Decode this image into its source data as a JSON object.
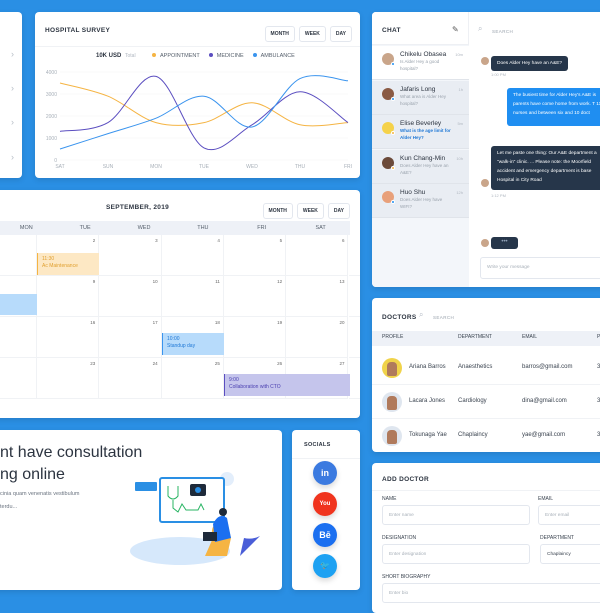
{
  "survey": {
    "title": "HOSPITAL SURVEY",
    "buttons": [
      "MONTH",
      "WEEK",
      "DAY"
    ],
    "total_value": "10K USD",
    "total_label": "Total"
  },
  "chart_data": {
    "type": "line",
    "title": "",
    "x": [
      "SAT",
      "SUN",
      "MON",
      "TUE",
      "WED",
      "THU",
      "FRI"
    ],
    "ylim": [
      0,
      4000
    ],
    "yticks": [
      0,
      1000,
      2000,
      3000,
      4000
    ],
    "grid": true,
    "legend": "top-center",
    "series": [
      {
        "name": "APPOINTMENT",
        "color": "#f5b443",
        "values": [
          3500,
          2900,
          1700,
          1700,
          2600,
          1600,
          1700
        ]
      },
      {
        "name": "MEDICINE",
        "color": "#5b4ec0",
        "values": [
          1300,
          1700,
          3800,
          550,
          1600,
          3100,
          1700
        ]
      },
      {
        "name": "AMBULANCE",
        "color": "#3a94ee",
        "values": [
          500,
          1200,
          1900,
          2900,
          1500,
          3700,
          3600
        ]
      }
    ]
  },
  "calendar": {
    "title": "SEPTEMBER, 2019",
    "buttons": [
      "MONTH",
      "WEEK",
      "DAY"
    ],
    "weekdays": [
      "MON",
      "TUE",
      "WED",
      "THU",
      "FRI",
      "SAT"
    ],
    "weeks": [
      [
        "2",
        "3",
        "4",
        "5",
        "6",
        "7"
      ],
      [
        "9",
        "10",
        "11",
        "12",
        "13",
        "14"
      ],
      [
        "16",
        "17",
        "18",
        "19",
        "20",
        "21"
      ],
      [
        "23",
        "24",
        "25",
        "26",
        "27",
        "28"
      ]
    ],
    "events": [
      {
        "time": "11:30",
        "title": "Ac Maintenance",
        "color": "#f5b443"
      },
      {
        "time": "10:00",
        "title": "Standup day",
        "color": "#3a94ee"
      },
      {
        "time": "9:00",
        "title": "Collaboration with CTO",
        "color": "#5b4ec0"
      }
    ]
  },
  "consult": {
    "heading1": "nt have consultation",
    "heading2": "ng online",
    "text1": "cinia quam venenatis vestibulum",
    "text2": "terdu..."
  },
  "socials": {
    "title": "SOCIALS",
    "items": [
      {
        "name": "linkedin",
        "glyph": "in",
        "color": "#3b7ae0"
      },
      {
        "name": "youtube",
        "glyph": "You",
        "color": "#f0341e"
      },
      {
        "name": "behance",
        "glyph": "Bē",
        "color": "#1b6ff0"
      },
      {
        "name": "twitter",
        "glyph": "🐦",
        "color": "#1da1f2"
      }
    ]
  },
  "chat": {
    "title": "CHAT",
    "search_placeholder": "SEARCH",
    "input_placeholder": "Write your message",
    "contacts": [
      {
        "name": "Chikelu Obasea",
        "msg": "Is Alder Hey a good hospital?",
        "time": "10m"
      },
      {
        "name": "Jafaris Long",
        "msg": "What area is Alder Hey hospital?",
        "time": "1h"
      },
      {
        "name": "Elise Beverley",
        "msg": "What is the age limit for Alder Hey?",
        "time": "5m"
      },
      {
        "name": "Kun Chang-Min",
        "msg": "Does Alder Hey have an A&E?",
        "time": "10h"
      },
      {
        "name": "Huo Shu",
        "msg": "Does Alder Hey have WIFI?",
        "time": "12h"
      }
    ],
    "messages": [
      {
        "text": "Does Alder Hey have an A&E?",
        "time": "1:00 PM"
      },
      {
        "text": "The busiest time for Alder Hey's A&E is parents have come home from work. T 11 nurses and between six and 10 doct"
      },
      {
        "text": "Let me paste one thing: Our A&E department a \"walk-in\" clinic. ... Please note: the Moorfield accident and emergency department is base Hospital in City Road",
        "time": "1:12 PM"
      }
    ]
  },
  "doctors": {
    "title": "DOCTORS",
    "search_placeholder": "SEARCH",
    "columns": [
      "PROFILE",
      "DEPARTMENT",
      "EMAIL",
      "P"
    ],
    "rows": [
      {
        "name": "Ariana Barros",
        "dept": "Anaesthetics",
        "email": "barros@gmail.com",
        "p": "3"
      },
      {
        "name": "Lacara Jones",
        "dept": "Cardiology",
        "email": "dina@gmail.com",
        "p": "3"
      },
      {
        "name": "Tokunaga Yae",
        "dept": "Chaplaincy",
        "email": "yae@gmail.com",
        "p": "3"
      }
    ]
  },
  "add_doctor": {
    "title": "ADD DOCTOR",
    "name_label": "NAME",
    "name_ph": "Enter name",
    "email_label": "EMAIL",
    "email_ph": "Enter email",
    "desig_label": "DESIGNATION",
    "desig_ph": "Enter designation",
    "dept_label": "DEPARTMENT",
    "dept_value": "Chaplaincy",
    "bio_label": "SHORT BIOGRAPHY",
    "bio_ph": "Enter bio"
  }
}
